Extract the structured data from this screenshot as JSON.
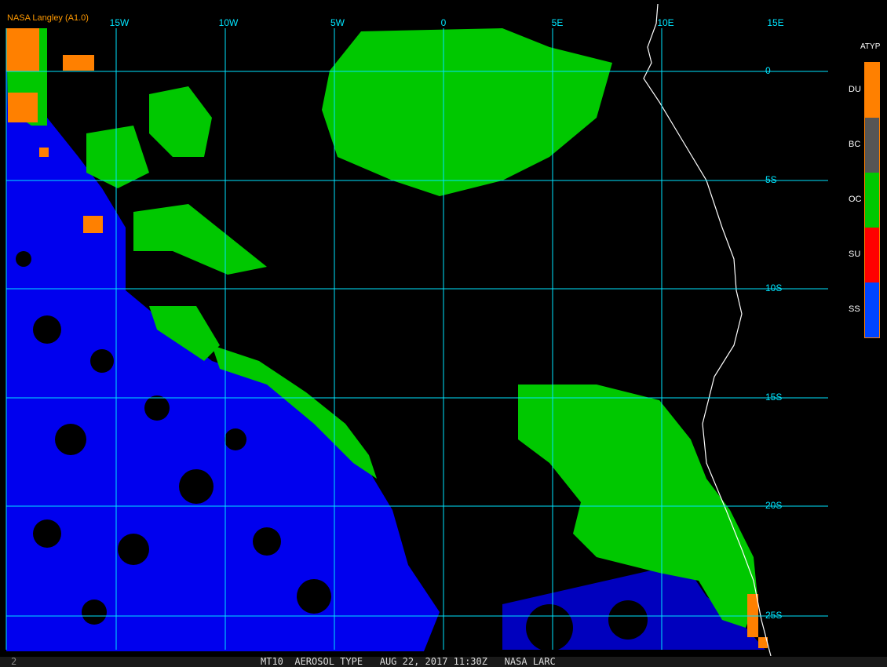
{
  "header": {
    "title": "NASA Langley (A1.0)"
  },
  "map": {
    "lon_labels": [
      "15W",
      "10W",
      "5W",
      "0",
      "5E",
      "10E",
      "15E"
    ],
    "lat_labels": [
      "0",
      "5S",
      "10S",
      "15S",
      "20S",
      "25S"
    ],
    "grid_color": "#00e5ff",
    "coastline_color": "#ffffff"
  },
  "legend": {
    "title": "ATYP",
    "items": [
      {
        "label": "DU",
        "color": "#ff8000"
      },
      {
        "label": "BC",
        "color": "#555555"
      },
      {
        "label": "OC",
        "color": "#00c800"
      },
      {
        "label": "SU",
        "color": "#ff0000"
      },
      {
        "label": "SS",
        "color": "#0044ff"
      }
    ]
  },
  "footer": {
    "frame_number": "2",
    "caption": "MT10  AEROSOL TYPE   AUG 22, 2017 11:30Z   NASA LARC"
  }
}
